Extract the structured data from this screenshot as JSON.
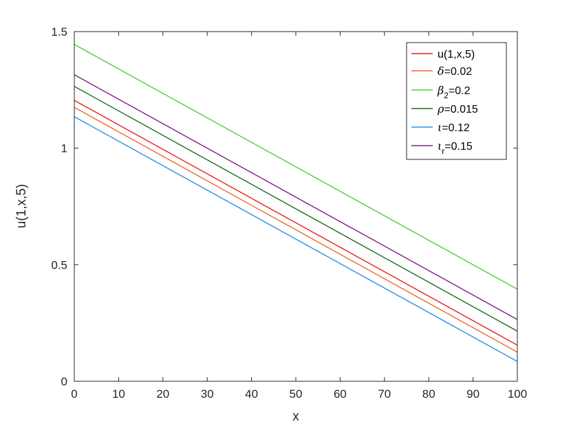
{
  "chart_data": {
    "type": "line",
    "title": "",
    "xlabel": "x",
    "ylabel": "u(1,x,5)",
    "xlim": [
      0,
      100
    ],
    "ylim": [
      0,
      1.5
    ],
    "xticks": [
      0,
      10,
      20,
      30,
      40,
      50,
      60,
      70,
      80,
      90,
      100
    ],
    "yticks": [
      0,
      0.5,
      1,
      1.5
    ],
    "xtick_labels": [
      "0",
      "10",
      "20",
      "30",
      "40",
      "50",
      "60",
      "70",
      "80",
      "90",
      "100"
    ],
    "ytick_labels": [
      "0",
      "0.5",
      "1",
      "1.5"
    ],
    "grid": false,
    "legend_position": "top-right",
    "series": [
      {
        "name": "u(1,x,5)",
        "legend": {
          "plain": "u(1,x,5)"
        },
        "color": "#e8201e",
        "x": [
          0,
          100
        ],
        "y": [
          1.205,
          0.155
        ]
      },
      {
        "name": "δ=0.02",
        "legend": {
          "sym": "δ",
          "rest": "=0.02"
        },
        "color": "#f0682e",
        "x": [
          0,
          100
        ],
        "y": [
          1.175,
          0.125
        ]
      },
      {
        "name": "β2=0.2",
        "legend": {
          "sym": "β",
          "sub": "2",
          "rest": "=0.2"
        },
        "color": "#4fcf3a",
        "x": [
          0,
          100
        ],
        "y": [
          1.445,
          0.395
        ]
      },
      {
        "name": "ρ=0.015",
        "legend": {
          "sym": "ρ",
          "rest": "=0.015"
        },
        "color": "#1f6b1f",
        "x": [
          0,
          100
        ],
        "y": [
          1.265,
          0.215
        ]
      },
      {
        "name": "ι=0.12",
        "legend": {
          "sym": "ι",
          "rest": "=0.12"
        },
        "color": "#2b8fe6",
        "x": [
          0,
          100
        ],
        "y": [
          1.135,
          0.085
        ]
      },
      {
        "name": "ιr=0.15",
        "legend": {
          "sym": "ι",
          "sub": "r",
          "rest": "=0.15"
        },
        "color": "#7e1f86",
        "x": [
          0,
          100
        ],
        "y": [
          1.315,
          0.265
        ]
      }
    ]
  }
}
